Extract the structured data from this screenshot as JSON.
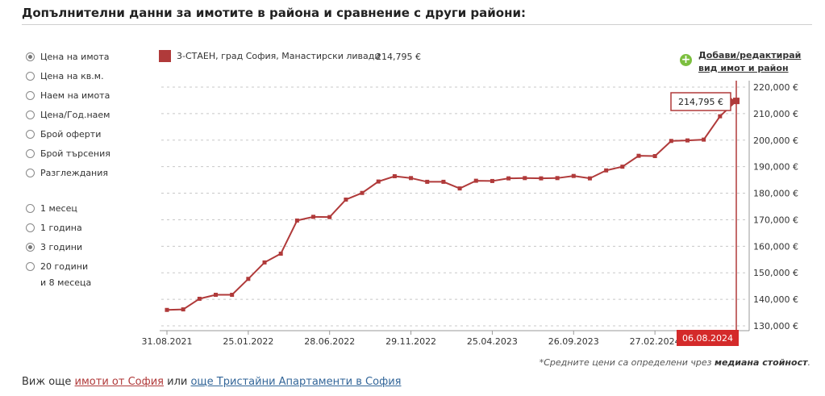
{
  "title": "Допълнителни данни за имотите в района и сравнение с други райони:",
  "metric_options": [
    {
      "label": "Цена на имота",
      "checked": true
    },
    {
      "label": "Цена на кв.м.",
      "checked": false
    },
    {
      "label": "Наем на имота",
      "checked": false
    },
    {
      "label": "Цена/Год.наем",
      "checked": false
    },
    {
      "label": "Брой оферти",
      "checked": false
    },
    {
      "label": "Брой търсения",
      "checked": false
    },
    {
      "label": "Разглеждания",
      "checked": false
    }
  ],
  "period_options": [
    {
      "label": "1 месец",
      "checked": false
    },
    {
      "label": "1 година",
      "checked": false
    },
    {
      "label": "3 години",
      "checked": true
    },
    {
      "label": "20 години",
      "label2": "и 8 месеца",
      "checked": false
    }
  ],
  "legend": {
    "label": "3-СТАЕН, град София, Манастирски ливади",
    "value": "214,795 €"
  },
  "add_link": {
    "line1": "Добави/редактирай",
    "line2": "вид имот и район"
  },
  "note": {
    "prefix": "*Средните цени са определени чрез ",
    "bold": "медиана стойност",
    "suffix": "."
  },
  "footer": {
    "prefix": "Виж още ",
    "link1": "имоти от София",
    "middle": " или ",
    "link2": "още Тристайни Апартаменти в София"
  },
  "colors": {
    "series": "#b03a3a",
    "marker": "#b03a3a",
    "highlight": "#d42a2a"
  },
  "chart_data": {
    "type": "line",
    "series": [
      {
        "name": "3-СТАЕН, град София, Манастирски ливади",
        "values": [
          136000,
          136200,
          140200,
          141700,
          141700,
          147700,
          153900,
          157200,
          169700,
          171100,
          171000,
          177600,
          180100,
          184400,
          186400,
          185700,
          184300,
          184300,
          181800,
          184700,
          184600,
          185600,
          185700,
          185600,
          185700,
          186500,
          185600,
          188600,
          190000,
          194100,
          194000,
          199700,
          199900,
          200200,
          209000,
          214795
        ]
      }
    ],
    "x_tick_labels": [
      "31.08.2021",
      "25.01.2022",
      "28.06.2022",
      "29.11.2022",
      "25.04.2023",
      "26.09.2023",
      "27.02.2024"
    ],
    "x_tick_indices": [
      0,
      5,
      10,
      15,
      20,
      25,
      30
    ],
    "y_ticks": [
      130000,
      140000,
      150000,
      160000,
      170000,
      180000,
      190000,
      200000,
      210000,
      220000
    ],
    "y_tick_labels": [
      "130,000 €",
      "140,000 €",
      "150,000 €",
      "160,000 €",
      "170,000 €",
      "180,000 €",
      "190,000 €",
      "200,000 €",
      "210,000 €",
      "220,000 €"
    ],
    "ylim": [
      130000,
      220000
    ],
    "grid": true,
    "last_point": {
      "date": "06.08.2024",
      "label": "214,795 €"
    }
  }
}
